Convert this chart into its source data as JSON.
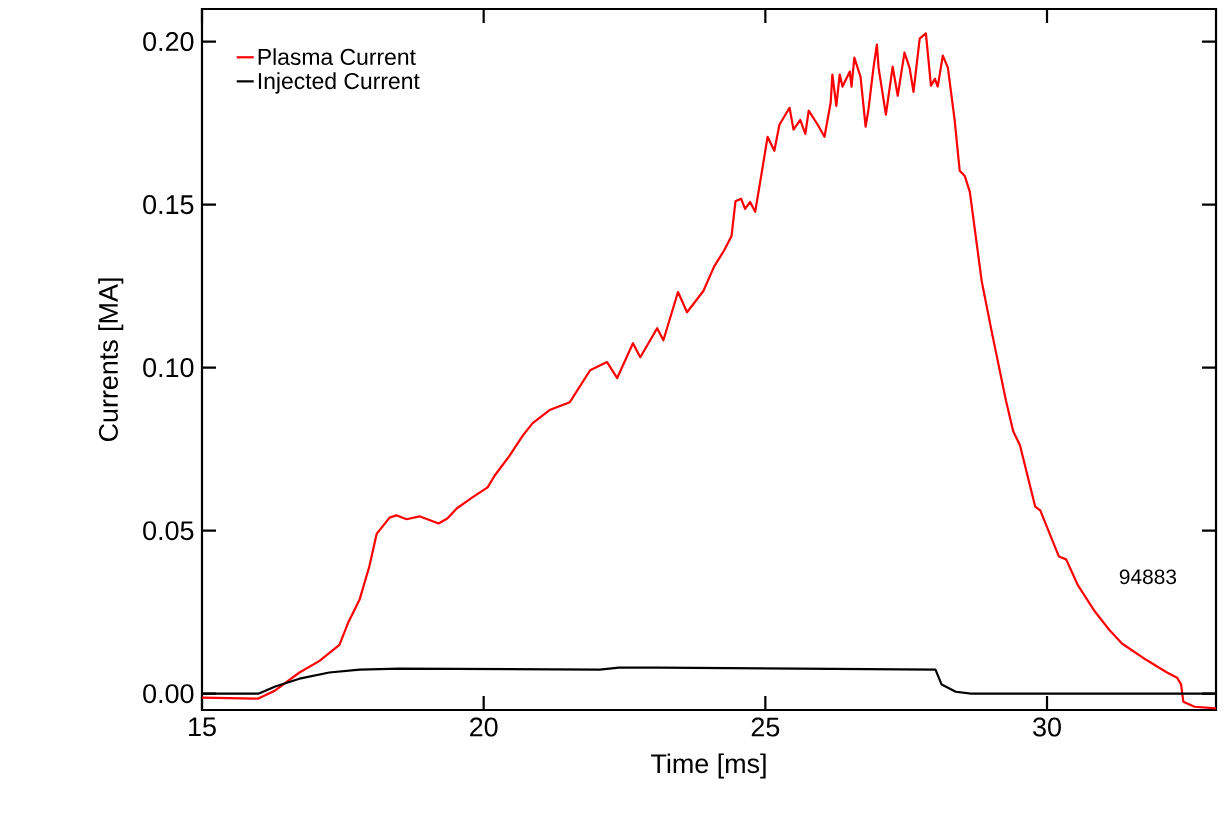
{
  "chart_data": {
    "type": "line",
    "xlabel": "Time [ms]",
    "ylabel": "Currents [MA]",
    "xlim": [
      15,
      33
    ],
    "ylim": [
      -0.005,
      0.21
    ],
    "xticks": [
      15,
      20,
      25,
      30
    ],
    "yticks": [
      {
        "value": 0,
        "label": "0.00"
      },
      {
        "value": 0.05,
        "label": "0.05"
      },
      {
        "value": 0.1,
        "label": "0.10"
      },
      {
        "value": 0.15,
        "label": "0.15"
      },
      {
        "value": 0.2,
        "label": "0.20"
      }
    ],
    "grid": false,
    "legend": "top left",
    "marker": "none",
    "line_style": "solid",
    "annotations": [
      "94883"
    ],
    "series": [
      {
        "name": "Plasma Current",
        "color": "#ff0000",
        "x": [
          15,
          16.0,
          16.3,
          16.73,
          17.08,
          17.44,
          17.6,
          17.8,
          17.97,
          18.1,
          18.33,
          18.45,
          18.63,
          18.86,
          19.2,
          19.36,
          19.52,
          19.8,
          20.07,
          20.2,
          20.46,
          20.7,
          20.87,
          21.17,
          21.53,
          21.89,
          22.19,
          22.37,
          22.65,
          22.78,
          23.08,
          23.19,
          23.45,
          23.61,
          23.9,
          24.09,
          24.27,
          24.4,
          24.47,
          24.57,
          24.64,
          24.73,
          24.82,
          24.95,
          25.04,
          25.16,
          25.25,
          25.43,
          25.5,
          25.62,
          25.71,
          25.77,
          25.93,
          26.05,
          26.16,
          26.19,
          26.26,
          26.32,
          26.37,
          26.5,
          26.53,
          26.58,
          26.69,
          26.78,
          26.83,
          26.92,
          26.98,
          27.01,
          27.14,
          27.26,
          27.35,
          27.47,
          27.56,
          27.63,
          27.74,
          27.85,
          27.94,
          28.01,
          28.06,
          28.15,
          28.24,
          28.36,
          28.45,
          28.54,
          28.63,
          28.84,
          29.02,
          29.27,
          29.4,
          29.52,
          29.79,
          29.88,
          30.21,
          30.34,
          30.55,
          30.85,
          31.1,
          31.33,
          31.76,
          32.13,
          32.31,
          32.38,
          32.42,
          32.62,
          33.0
        ],
        "values": [
          -0.0012,
          -0.0015,
          0.001,
          0.0065,
          0.01,
          0.015,
          0.022,
          0.029,
          0.039,
          0.049,
          0.054,
          0.0547,
          0.0535,
          0.0544,
          0.0522,
          0.0538,
          0.0568,
          0.0602,
          0.0633,
          0.067,
          0.073,
          0.0793,
          0.083,
          0.087,
          0.0894,
          0.0992,
          0.1017,
          0.0968,
          0.1075,
          0.1032,
          0.1121,
          0.1084,
          0.1232,
          0.117,
          0.1235,
          0.131,
          0.136,
          0.1404,
          0.151,
          0.1518,
          0.1487,
          0.1508,
          0.1478,
          0.1613,
          0.1708,
          0.1665,
          0.1745,
          0.1797,
          0.173,
          0.176,
          0.1717,
          0.1788,
          0.1745,
          0.1708,
          0.1813,
          0.1899,
          0.1803,
          0.1899,
          0.1862,
          0.1908,
          0.1862,
          0.1951,
          0.1892,
          0.1739,
          0.1791,
          0.192,
          0.1991,
          0.192,
          0.1776,
          0.1923,
          0.1834,
          0.1966,
          0.192,
          0.1846,
          0.2009,
          0.2025,
          0.1865,
          0.1886,
          0.1862,
          0.1957,
          0.192,
          0.176,
          0.1604,
          0.1588,
          0.1539,
          0.1266,
          0.1109,
          0.09,
          0.0805,
          0.0762,
          0.0574,
          0.0562,
          0.0421,
          0.0412,
          0.0332,
          0.0252,
          0.0197,
          0.0154,
          0.0104,
          0.0065,
          0.0049,
          0.0028,
          -0.0025,
          -0.004,
          -0.0045
        ]
      },
      {
        "name": "Injected Current",
        "color": "#000000",
        "x": [
          15,
          16.0,
          16.3,
          16.73,
          17.26,
          17.8,
          18.5,
          22.06,
          22.4,
          23.1,
          28.02,
          28.13,
          28.38,
          28.65,
          33.0
        ],
        "values": [
          0.0,
          0.0,
          0.0022,
          0.0046,
          0.0065,
          0.0074,
          0.0077,
          0.0074,
          0.008,
          0.008,
          0.0074,
          0.0028,
          0.0006,
          0.0,
          0.0
        ]
      }
    ]
  }
}
